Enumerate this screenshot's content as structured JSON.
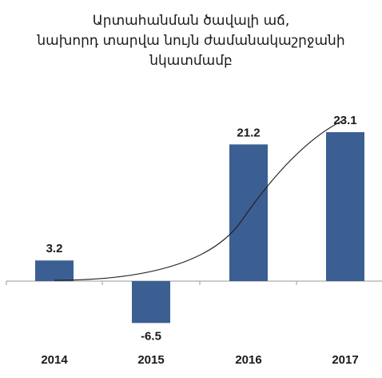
{
  "chart_data": {
    "type": "bar",
    "title": [
      "Արտահանման ծավալի աճ,",
      "նախորդ տարվա նույն ժամանակաշրջանի",
      "նկատմամբ"
    ],
    "categories": [
      "2014",
      "2015",
      "2016",
      "2017"
    ],
    "values": [
      3.2,
      -6.5,
      21.2,
      23.1
    ],
    "value_labels": [
      "3.2",
      "-6.5",
      "21.2",
      "23.1"
    ],
    "trendline": "polynomial",
    "bar_color": "#3b5f93",
    "trend_color": "#222222",
    "grid": false,
    "legend": "none"
  }
}
